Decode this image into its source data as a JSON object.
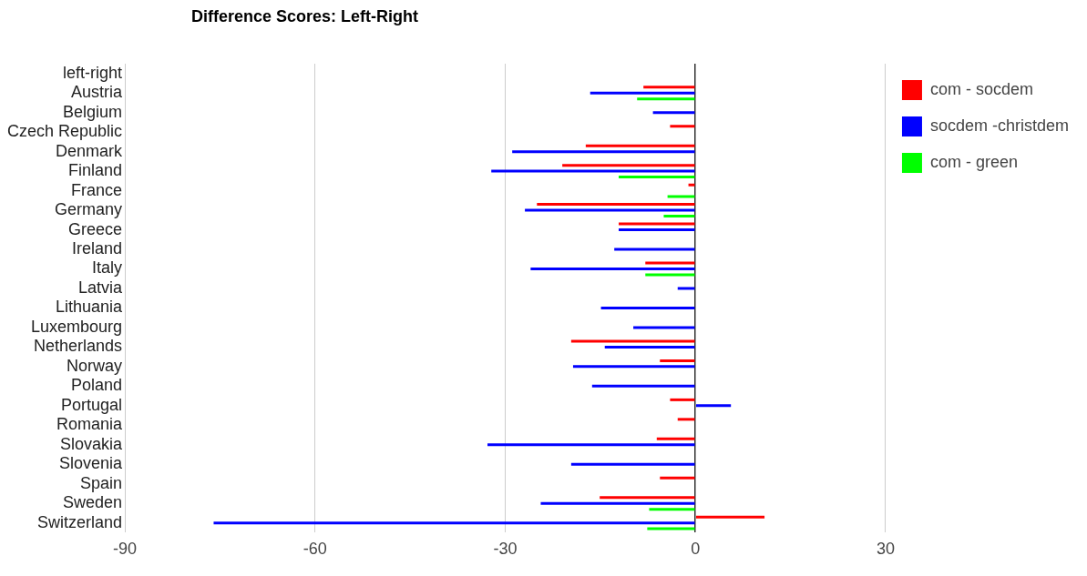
{
  "chart_data": {
    "type": "bar",
    "orientation": "horizontal",
    "title": "Difference Scores: Left-Right",
    "categories": [
      "left-right",
      "Austria",
      "Belgium",
      "Czech Republic",
      "Denmark",
      "Finland",
      "France",
      "Germany",
      "Greece",
      "Ireland",
      "Italy",
      "Latvia",
      "Lithuania",
      "Luxembourg",
      "Netherlands",
      "Norway",
      "Poland",
      "Portugal",
      "Romania",
      "Slovakia",
      "Slovenia",
      "Spain",
      "Sweden",
      "Switzerland"
    ],
    "series": [
      {
        "name": "com - socdem",
        "color": "#ff0000",
        "values": [
          null,
          -8.2,
          null,
          -4.0,
          -17.3,
          -21,
          -1.1,
          -25,
          -12.1,
          null,
          -7.9,
          null,
          null,
          null,
          -19.6,
          -5.6,
          null,
          -4.0,
          -2.8,
          -6.1,
          null,
          -5.6,
          -15.1,
          10.9
        ]
      },
      {
        "name": "socdem -christdem",
        "color": "#0000ff",
        "values": [
          null,
          -16.6,
          -6.7,
          null,
          -28.9,
          -32.2,
          null,
          -26.9,
          -12.1,
          -12.8,
          -26,
          -2.8,
          -14.9,
          -9.8,
          -14.3,
          -19.3,
          -16.3,
          5.6,
          null,
          -32.8,
          -19.6,
          null,
          -24.4,
          -76
        ]
      },
      {
        "name": "com - green",
        "color": "#00ff00",
        "values": [
          null,
          -9.2,
          null,
          null,
          null,
          -12.1,
          -4.4,
          -5.0,
          null,
          null,
          -7.9,
          null,
          null,
          null,
          null,
          null,
          null,
          null,
          null,
          null,
          null,
          null,
          -7.3,
          -7.6
        ]
      }
    ],
    "xlim": [
      -90,
      30
    ],
    "xticks": [
      -90,
      -60,
      -30,
      0,
      30
    ],
    "grid": "x",
    "legend": "top right"
  }
}
